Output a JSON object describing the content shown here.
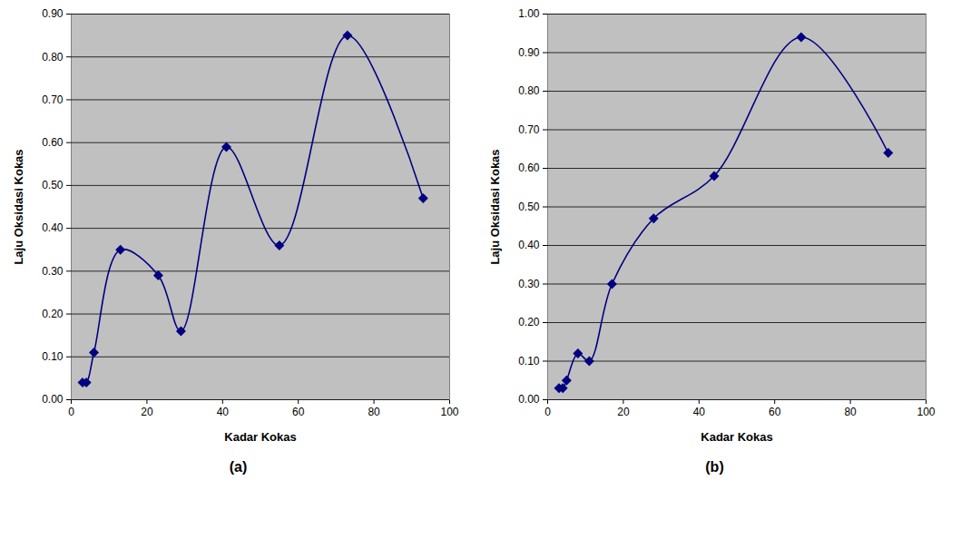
{
  "chart_data": [
    {
      "type": "line",
      "title": "(a)",
      "xlabel": "Kadar Kokas",
      "ylabel": "Laju Oksidasi Kokas",
      "x": [
        3,
        4,
        6,
        13,
        23,
        29,
        41,
        55,
        73,
        93
      ],
      "series": [
        {
          "name": null,
          "color": "#000080",
          "marker": "diamond",
          "line_style": "smooth",
          "values": [
            0.04,
            0.04,
            0.11,
            0.35,
            0.29,
            0.16,
            0.59,
            0.36,
            0.85,
            0.47
          ]
        }
      ],
      "xlim": [
        0,
        100
      ],
      "xticks": [
        0,
        20,
        40,
        60,
        80,
        100
      ],
      "ylim": [
        0,
        0.9
      ],
      "yticks": [
        {
          "value": 0,
          "label": "0.00"
        },
        {
          "value": 0.1,
          "label": "0.10"
        },
        {
          "value": 0.2,
          "label": "0.20"
        },
        {
          "value": 0.3,
          "label": "0.30"
        },
        {
          "value": 0.4,
          "label": "0.40"
        },
        {
          "value": 0.5,
          "label": "0.50"
        },
        {
          "value": 0.6,
          "label": "0.60"
        },
        {
          "value": 0.7,
          "label": "0.70"
        },
        {
          "value": 0.8,
          "label": "0.80"
        },
        {
          "value": 0.9,
          "label": "0.90"
        }
      ],
      "grid": true
    },
    {
      "type": "line",
      "title": "(b)",
      "xlabel": "Kadar Kokas",
      "ylabel": "Laju Oksidasi Kokas",
      "x": [
        3,
        4,
        5,
        8,
        11,
        17,
        28,
        44,
        67,
        90
      ],
      "series": [
        {
          "name": null,
          "color": "#000080",
          "marker": "diamond",
          "line_style": "smooth",
          "values": [
            0.03,
            0.03,
            0.05,
            0.12,
            0.1,
            0.3,
            0.47,
            0.58,
            0.94,
            0.64
          ]
        }
      ],
      "xlim": [
        0,
        100
      ],
      "xticks": [
        0,
        20,
        40,
        60,
        80,
        100
      ],
      "ylim": [
        0,
        1.0
      ],
      "yticks": [
        {
          "value": 0,
          "label": "0.00"
        },
        {
          "value": 0.1,
          "label": "0.10"
        },
        {
          "value": 0.2,
          "label": "0.20"
        },
        {
          "value": 0.3,
          "label": "0.30"
        },
        {
          "value": 0.4,
          "label": "0.40"
        },
        {
          "value": 0.5,
          "label": "0.50"
        },
        {
          "value": 0.6,
          "label": "0.60"
        },
        {
          "value": 0.7,
          "label": "0.70"
        },
        {
          "value": 0.8,
          "label": "0.80"
        },
        {
          "value": 0.9,
          "label": "0.90"
        },
        {
          "value": 1.0,
          "label": "1.00"
        }
      ],
      "grid": true
    }
  ]
}
